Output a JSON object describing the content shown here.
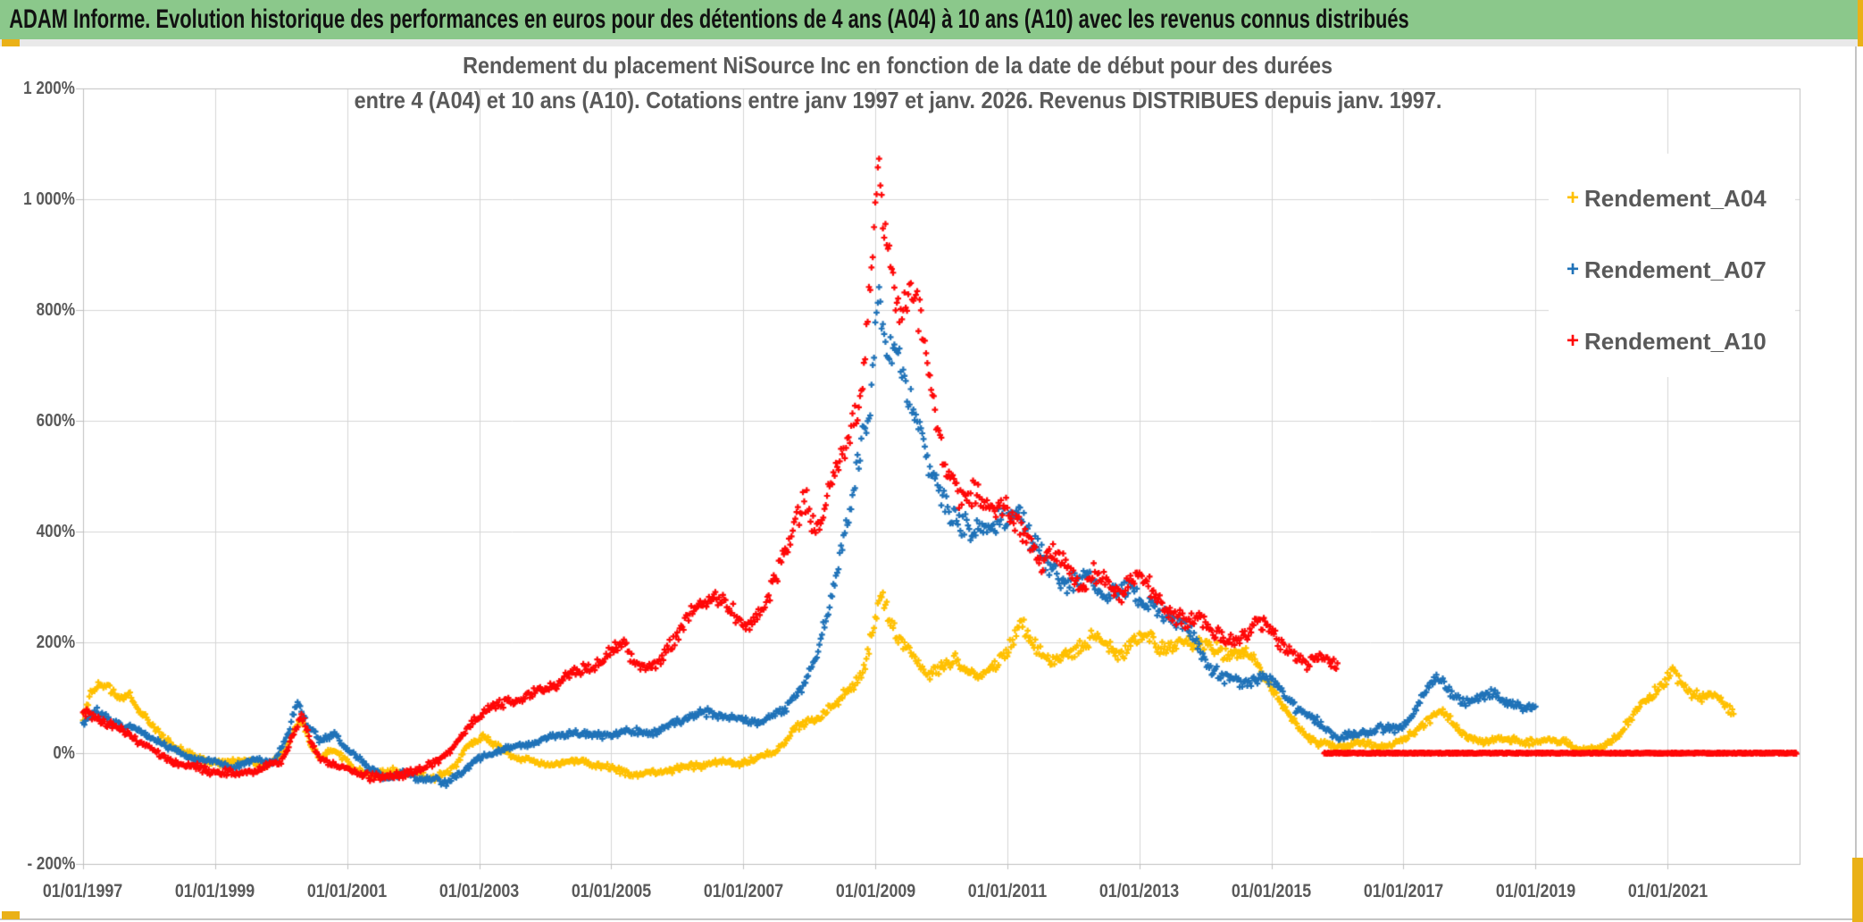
{
  "header": {
    "title": "ADAM Informe. Evolution historique des performances en euros pour des détentions de 4 ans (A04) à 10 ans (A10) avec les revenus connus distribués"
  },
  "frame": {
    "accent_color": "#EAB117",
    "header_green": "#8BC88B"
  },
  "chart_data": {
    "type": "scatter",
    "title_line1": "Rendement du placement NiSource Inc en fonction de la date de début pour des durées",
    "title_line2": "entre 4 (A04) et 10 ans (A10). Cotations entre janv 1997 et janv. 2026. Revenus DISTRIBUES depuis janv. 1997.",
    "marker": "plus",
    "grid": true,
    "legend_position": "right-top",
    "x_axis": {
      "min_year": 1997,
      "max_year": 2023,
      "tick_years": [
        1997,
        1999,
        2001,
        2003,
        2005,
        2007,
        2009,
        2011,
        2013,
        2015,
        2017,
        2019,
        2021
      ],
      "tick_labels": [
        "01/01/1997",
        "01/01/1999",
        "01/01/2001",
        "01/01/2003",
        "01/01/2005",
        "01/01/2007",
        "01/01/2009",
        "01/01/2011",
        "01/01/2013",
        "01/01/2015",
        "01/01/2017",
        "01/01/2019",
        "01/01/2021"
      ]
    },
    "y_axis": {
      "min": -200,
      "max": 1200,
      "unit": "%",
      "tick_values": [
        1200,
        1000,
        800,
        600,
        400,
        200,
        0,
        -200
      ],
      "tick_labels": [
        "1 200%",
        "1 000%",
        "800%",
        "600%",
        "400%",
        "200%",
        "0%",
        "- 200%"
      ]
    },
    "legend": [
      {
        "label": "Rendement_A04",
        "color": "#FFC000"
      },
      {
        "label": "Rendement_A07",
        "color": "#1F72B8"
      },
      {
        "label": "Rendement_A10",
        "color": "#FF0707"
      }
    ],
    "series": [
      {
        "name": "Rendement_A04",
        "color": "#FFC000",
        "samples_per_year": 52,
        "anchors": [
          [
            1997.0,
            60
          ],
          [
            1997.1,
            105
          ],
          [
            1997.25,
            130
          ],
          [
            1997.4,
            115
          ],
          [
            1997.55,
            100
          ],
          [
            1997.7,
            112
          ],
          [
            1997.85,
            80
          ],
          [
            1998.0,
            58
          ],
          [
            1998.2,
            32
          ],
          [
            1998.4,
            12
          ],
          [
            1998.6,
            -2
          ],
          [
            1998.9,
            -18
          ],
          [
            1999.2,
            -22
          ],
          [
            1999.5,
            -12
          ],
          [
            1999.8,
            -25
          ],
          [
            2000.05,
            5
          ],
          [
            2000.2,
            45
          ],
          [
            2000.3,
            62
          ],
          [
            2000.45,
            18
          ],
          [
            2000.6,
            -8
          ],
          [
            2000.75,
            8
          ],
          [
            2000.95,
            -8
          ],
          [
            2001.15,
            -30
          ],
          [
            2001.45,
            -42
          ],
          [
            2001.7,
            -34
          ],
          [
            2002.0,
            -40
          ],
          [
            2002.3,
            -46
          ],
          [
            2002.6,
            -32
          ],
          [
            2002.85,
            18
          ],
          [
            2003.05,
            32
          ],
          [
            2003.3,
            12
          ],
          [
            2003.6,
            -8
          ],
          [
            2003.9,
            -16
          ],
          [
            2004.2,
            -22
          ],
          [
            2004.5,
            -14
          ],
          [
            2004.8,
            -26
          ],
          [
            2005.1,
            -32
          ],
          [
            2005.4,
            -42
          ],
          [
            2005.7,
            -30
          ],
          [
            2006.0,
            -26
          ],
          [
            2006.3,
            -20
          ],
          [
            2006.6,
            -14
          ],
          [
            2006.9,
            -20
          ],
          [
            2007.2,
            -12
          ],
          [
            2007.5,
            2
          ],
          [
            2007.8,
            42
          ],
          [
            2008.0,
            55
          ],
          [
            2008.2,
            68
          ],
          [
            2008.4,
            88
          ],
          [
            2008.6,
            118
          ],
          [
            2008.8,
            150
          ],
          [
            2008.95,
            215
          ],
          [
            2009.08,
            295
          ],
          [
            2009.2,
            255
          ],
          [
            2009.35,
            212
          ],
          [
            2009.5,
            188
          ],
          [
            2009.65,
            158
          ],
          [
            2009.8,
            140
          ],
          [
            2010.0,
            152
          ],
          [
            2010.2,
            162
          ],
          [
            2010.4,
            142
          ],
          [
            2010.6,
            132
          ],
          [
            2010.8,
            152
          ],
          [
            2011.0,
            185
          ],
          [
            2011.2,
            235
          ],
          [
            2011.45,
            190
          ],
          [
            2011.7,
            168
          ],
          [
            2011.9,
            186
          ],
          [
            2012.1,
            200
          ],
          [
            2012.3,
            214
          ],
          [
            2012.5,
            192
          ],
          [
            2012.7,
            176
          ],
          [
            2012.9,
            196
          ],
          [
            2013.1,
            206
          ],
          [
            2013.3,
            190
          ],
          [
            2013.5,
            182
          ],
          [
            2013.75,
            200
          ],
          [
            2014.0,
            196
          ],
          [
            2014.25,
            182
          ],
          [
            2014.5,
            192
          ],
          [
            2014.75,
            172
          ],
          [
            2015.0,
            125
          ],
          [
            2015.2,
            80
          ],
          [
            2015.45,
            38
          ],
          [
            2015.7,
            16
          ],
          [
            2016.0,
            8
          ],
          [
            2016.3,
            18
          ],
          [
            2016.6,
            12
          ],
          [
            2017.0,
            24
          ],
          [
            2017.35,
            62
          ],
          [
            2017.6,
            76
          ],
          [
            2017.9,
            36
          ],
          [
            2018.2,
            18
          ],
          [
            2018.5,
            28
          ],
          [
            2018.8,
            14
          ],
          [
            2019.1,
            22
          ],
          [
            2019.45,
            20
          ],
          [
            2019.7,
            6
          ],
          [
            2020.0,
            10
          ],
          [
            2020.3,
            42
          ],
          [
            2020.6,
            88
          ],
          [
            2020.9,
            126
          ],
          [
            2021.1,
            142
          ],
          [
            2021.3,
            114
          ],
          [
            2021.5,
            96
          ],
          [
            2021.7,
            102
          ],
          [
            2021.85,
            88
          ],
          [
            2022.0,
            72
          ]
        ]
      },
      {
        "name": "Rendement_A07",
        "color": "#1F72B8",
        "samples_per_year": 52,
        "anchors": [
          [
            1997.0,
            58
          ],
          [
            1997.2,
            72
          ],
          [
            1997.4,
            58
          ],
          [
            1997.7,
            44
          ],
          [
            1998.0,
            28
          ],
          [
            1998.3,
            8
          ],
          [
            1998.6,
            -8
          ],
          [
            1999.0,
            -16
          ],
          [
            1999.3,
            -22
          ],
          [
            1999.6,
            -10
          ],
          [
            1999.9,
            -14
          ],
          [
            2000.1,
            30
          ],
          [
            2000.25,
            92
          ],
          [
            2000.4,
            48
          ],
          [
            2000.6,
            18
          ],
          [
            2000.8,
            32
          ],
          [
            2001.0,
            6
          ],
          [
            2001.3,
            -26
          ],
          [
            2001.6,
            -42
          ],
          [
            2001.9,
            -34
          ],
          [
            2002.2,
            -44
          ],
          [
            2002.5,
            -52
          ],
          [
            2002.8,
            -30
          ],
          [
            2003.0,
            -12
          ],
          [
            2003.3,
            4
          ],
          [
            2003.6,
            10
          ],
          [
            2004.0,
            24
          ],
          [
            2004.4,
            40
          ],
          [
            2004.8,
            34
          ],
          [
            2005.2,
            40
          ],
          [
            2005.6,
            36
          ],
          [
            2006.0,
            54
          ],
          [
            2006.4,
            70
          ],
          [
            2006.8,
            64
          ],
          [
            2007.2,
            58
          ],
          [
            2007.6,
            78
          ],
          [
            2007.9,
            128
          ],
          [
            2008.1,
            170
          ],
          [
            2008.3,
            260
          ],
          [
            2008.5,
            380
          ],
          [
            2008.7,
            480
          ],
          [
            2008.9,
            600
          ],
          [
            2009.05,
            820
          ],
          [
            2009.2,
            690
          ],
          [
            2009.35,
            705
          ],
          [
            2009.5,
            640
          ],
          [
            2009.65,
            600
          ],
          [
            2009.8,
            520
          ],
          [
            2010.0,
            470
          ],
          [
            2010.2,
            440
          ],
          [
            2010.5,
            405
          ],
          [
            2010.8,
            430
          ],
          [
            2011.0,
            420
          ],
          [
            2011.2,
            432
          ],
          [
            2011.4,
            372
          ],
          [
            2011.6,
            330
          ],
          [
            2011.9,
            300
          ],
          [
            2012.2,
            312
          ],
          [
            2012.5,
            282
          ],
          [
            2012.8,
            302
          ],
          [
            2013.1,
            282
          ],
          [
            2013.4,
            252
          ],
          [
            2013.7,
            242
          ],
          [
            2014.0,
            162
          ],
          [
            2014.3,
            132
          ],
          [
            2014.6,
            122
          ],
          [
            2014.9,
            136
          ],
          [
            2015.1,
            118
          ],
          [
            2015.4,
            80
          ],
          [
            2015.7,
            58
          ],
          [
            2016.0,
            30
          ],
          [
            2016.3,
            36
          ],
          [
            2016.6,
            46
          ],
          [
            2016.9,
            42
          ],
          [
            2017.1,
            58
          ],
          [
            2017.3,
            100
          ],
          [
            2017.5,
            138
          ],
          [
            2017.7,
            108
          ],
          [
            2017.9,
            86
          ],
          [
            2018.1,
            96
          ],
          [
            2018.3,
            114
          ],
          [
            2018.5,
            96
          ],
          [
            2018.7,
            90
          ],
          [
            2019.0,
            86
          ]
        ]
      },
      {
        "name": "Rendement_A10",
        "color": "#FF0707",
        "samples_per_year": 52,
        "zero_tail": {
          "from": 2015.8,
          "to": 2022.95
        },
        "anchors": [
          [
            1997.0,
            70
          ],
          [
            1997.3,
            62
          ],
          [
            1997.6,
            42
          ],
          [
            1997.9,
            22
          ],
          [
            1998.2,
            -6
          ],
          [
            1998.5,
            -20
          ],
          [
            1998.8,
            -30
          ],
          [
            1999.1,
            -36
          ],
          [
            1999.4,
            -42
          ],
          [
            1999.7,
            -30
          ],
          [
            2000.0,
            -15
          ],
          [
            2000.2,
            40
          ],
          [
            2000.3,
            72
          ],
          [
            2000.45,
            22
          ],
          [
            2000.6,
            -8
          ],
          [
            2000.9,
            -22
          ],
          [
            2001.2,
            -36
          ],
          [
            2001.5,
            -46
          ],
          [
            2001.8,
            -40
          ],
          [
            2002.0,
            -36
          ],
          [
            2002.3,
            -22
          ],
          [
            2002.6,
            8
          ],
          [
            2002.9,
            58
          ],
          [
            2003.2,
            88
          ],
          [
            2003.5,
            98
          ],
          [
            2003.8,
            108
          ],
          [
            2004.1,
            124
          ],
          [
            2004.4,
            140
          ],
          [
            2004.7,
            152
          ],
          [
            2005.0,
            172
          ],
          [
            2005.2,
            196
          ],
          [
            2005.45,
            148
          ],
          [
            2005.7,
            162
          ],
          [
            2006.0,
            222
          ],
          [
            2006.3,
            272
          ],
          [
            2006.55,
            295
          ],
          [
            2006.8,
            258
          ],
          [
            2007.05,
            232
          ],
          [
            2007.3,
            252
          ],
          [
            2007.55,
            330
          ],
          [
            2007.75,
            405
          ],
          [
            2007.95,
            440
          ],
          [
            2008.1,
            390
          ],
          [
            2008.25,
            450
          ],
          [
            2008.45,
            520
          ],
          [
            2008.65,
            590
          ],
          [
            2008.8,
            680
          ],
          [
            2008.95,
            900
          ],
          [
            2009.05,
            1075
          ],
          [
            2009.15,
            950
          ],
          [
            2009.3,
            860
          ],
          [
            2009.45,
            820
          ],
          [
            2009.55,
            845
          ],
          [
            2009.7,
            780
          ],
          [
            2009.85,
            660
          ],
          [
            2010.0,
            545
          ],
          [
            2010.15,
            480
          ],
          [
            2010.3,
            450
          ],
          [
            2010.5,
            472
          ],
          [
            2010.7,
            425
          ],
          [
            2010.9,
            445
          ],
          [
            2011.1,
            430
          ],
          [
            2011.3,
            392
          ],
          [
            2011.5,
            345
          ],
          [
            2011.7,
            372
          ],
          [
            2011.9,
            342
          ],
          [
            2012.1,
            305
          ],
          [
            2012.3,
            332
          ],
          [
            2012.5,
            302
          ],
          [
            2012.7,
            282
          ],
          [
            2012.9,
            322
          ],
          [
            2013.1,
            302
          ],
          [
            2013.3,
            272
          ],
          [
            2013.5,
            242
          ],
          [
            2013.7,
            232
          ],
          [
            2013.9,
            252
          ],
          [
            2014.1,
            222
          ],
          [
            2014.3,
            202
          ],
          [
            2014.5,
            212
          ],
          [
            2014.7,
            232
          ],
          [
            2014.9,
            242
          ],
          [
            2015.1,
            212
          ],
          [
            2015.3,
            182
          ],
          [
            2015.55,
            162
          ],
          [
            2015.75,
            172
          ],
          [
            2016.0,
            150
          ]
        ]
      }
    ]
  }
}
